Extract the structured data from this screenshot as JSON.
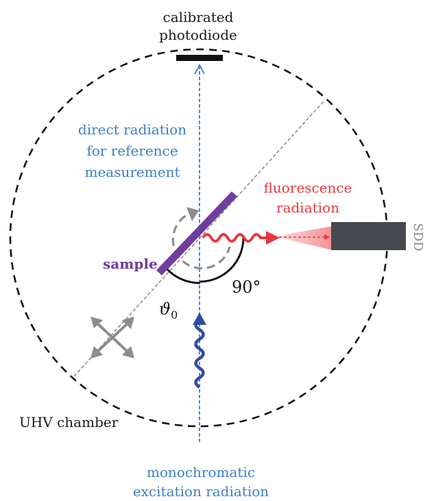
{
  "labels": {
    "photodiode_line1": "calibrated",
    "photodiode_line2": "photodiode",
    "direct_line1": "direct radiation",
    "direct_line2": "for reference",
    "direct_line3": "measurement",
    "fluorescence_line1": "fluorescence",
    "fluorescence_line2": "radiation",
    "detector": "SDD",
    "sample": "sample",
    "angle_90": "90°",
    "angle_theta": "ϑ",
    "angle_theta_sub": "0",
    "chamber": "UHV chamber",
    "excitation_line1": "monochromatic",
    "excitation_line2": "excitation radiation"
  },
  "colors": {
    "beam_blue": "#3d7ec9",
    "excitation_blue": "#2f4aa6",
    "fluorescence_red": "#e8373a",
    "sample_purple": "#6f3d9e",
    "detector_gray": "#474a4e",
    "motion_gray": "#8c8c8c",
    "outline_black": "#111111"
  },
  "icons": {
    "rotation": "rotation-arrow-icon",
    "translation": "four-way-arrow-icon"
  }
}
